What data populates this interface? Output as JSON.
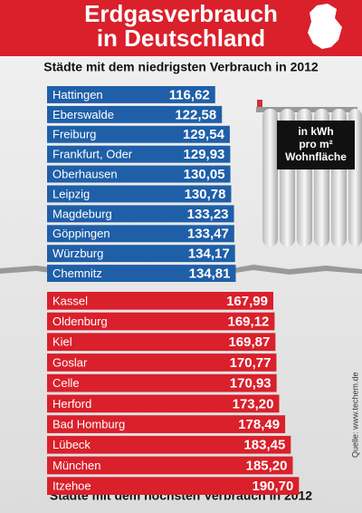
{
  "header": {
    "title_lines": [
      "Erdgasverbrauch",
      "in Deutschland"
    ],
    "unit_lines": [
      "in kWh",
      "pro m²",
      "Wohnfläche"
    ],
    "source": "Quelle: www.techem.de"
  },
  "chart_data": [
    {
      "type": "bar",
      "subtitle": "Städte mit dem niedrigsten Verbrauch in 2012",
      "color": "#1f5fa8",
      "categories": [
        "Hattingen",
        "Eberswalde",
        "Freiburg",
        "Frankfurt, Oder",
        "Oberhausen",
        "Leipzig",
        "Magdeburg",
        "Göppingen",
        "Würzburg",
        "Chemnitz"
      ],
      "values": [
        116.62,
        122.58,
        129.54,
        129.93,
        130.05,
        130.78,
        133.23,
        133.47,
        134.17,
        134.81
      ],
      "value_labels": [
        "116,62",
        "122,58",
        "129,54",
        "129,93",
        "130,05",
        "130,78",
        "133,23",
        "133,47",
        "134,17",
        "134,81"
      ]
    },
    {
      "type": "bar",
      "subtitle": "Städte mit dem höchsten Verbrauch in 2012",
      "color": "#d9202b",
      "categories": [
        "Kassel",
        "Oldenburg",
        "Kiel",
        "Goslar",
        "Celle",
        "Herford",
        "Bad Homburg",
        "Lübeck",
        "München",
        "Itzehoe"
      ],
      "values": [
        167.99,
        169.12,
        169.87,
        170.77,
        170.93,
        173.2,
        178.49,
        183.45,
        185.2,
        190.7
      ],
      "value_labels": [
        "167,99",
        "169,12",
        "169,87",
        "170,77",
        "170,93",
        "173,20",
        "178,49",
        "183,45",
        "185,20",
        "190,70"
      ]
    }
  ]
}
